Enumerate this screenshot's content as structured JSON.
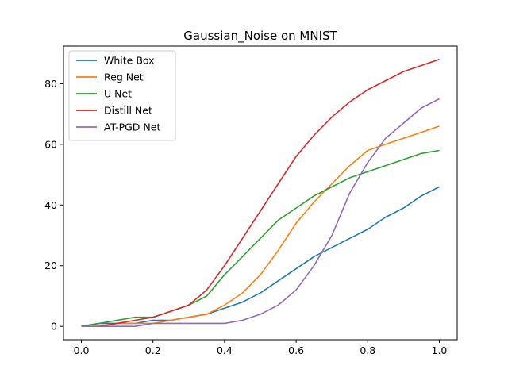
{
  "chart_data": {
    "type": "line",
    "title": "Gaussian_Noise on MNIST",
    "xlabel": "",
    "ylabel": "",
    "xlim": [
      -0.05,
      1.05
    ],
    "ylim": [
      -4.4,
      92.4
    ],
    "xticks": [
      0.0,
      0.2,
      0.4,
      0.6,
      0.8,
      1.0
    ],
    "xtick_labels": [
      "0.0",
      "0.2",
      "0.4",
      "0.6",
      "0.8",
      "1.0"
    ],
    "yticks": [
      0,
      20,
      40,
      60,
      80
    ],
    "ytick_labels": [
      "0",
      "20",
      "40",
      "60",
      "80"
    ],
    "grid": false,
    "legend_position": "top-left",
    "x": [
      0.0,
      0.05,
      0.1,
      0.15,
      0.2,
      0.25,
      0.3,
      0.35,
      0.4,
      0.45,
      0.5,
      0.55,
      0.6,
      0.65,
      0.7,
      0.75,
      0.8,
      0.85,
      0.9,
      0.95,
      1.0
    ],
    "series": [
      {
        "name": "White Box",
        "color": "#1f77b4",
        "values": [
          0,
          1,
          1,
          1,
          2,
          2,
          3,
          4,
          6,
          8,
          11,
          15,
          19,
          23,
          26,
          29,
          32,
          36,
          39,
          43,
          46
        ]
      },
      {
        "name": "Reg Net",
        "color": "#ff7f0e",
        "values": [
          0,
          0,
          1,
          1,
          1,
          2,
          3,
          4,
          7,
          11,
          17,
          25,
          34,
          41,
          47,
          53,
          58,
          60,
          62,
          64,
          66
        ]
      },
      {
        "name": "U Net",
        "color": "#2ca02c",
        "values": [
          0,
          1,
          2,
          3,
          3,
          5,
          7,
          10,
          17,
          23,
          29,
          35,
          39,
          43,
          46,
          49,
          51,
          53,
          55,
          57,
          58
        ]
      },
      {
        "name": "Distill Net",
        "color": "#d62728",
        "values": [
          0,
          0,
          1,
          2,
          3,
          5,
          7,
          12,
          20,
          29,
          38,
          47,
          56,
          63,
          69,
          74,
          78,
          81,
          84,
          86,
          88
        ]
      },
      {
        "name": "AT-PGD Net",
        "color": "#9467bd",
        "values": [
          0,
          0,
          0,
          0,
          1,
          1,
          1,
          1,
          1,
          2,
          4,
          7,
          12,
          20,
          30,
          44,
          54,
          62,
          67,
          72,
          75
        ]
      }
    ]
  }
}
